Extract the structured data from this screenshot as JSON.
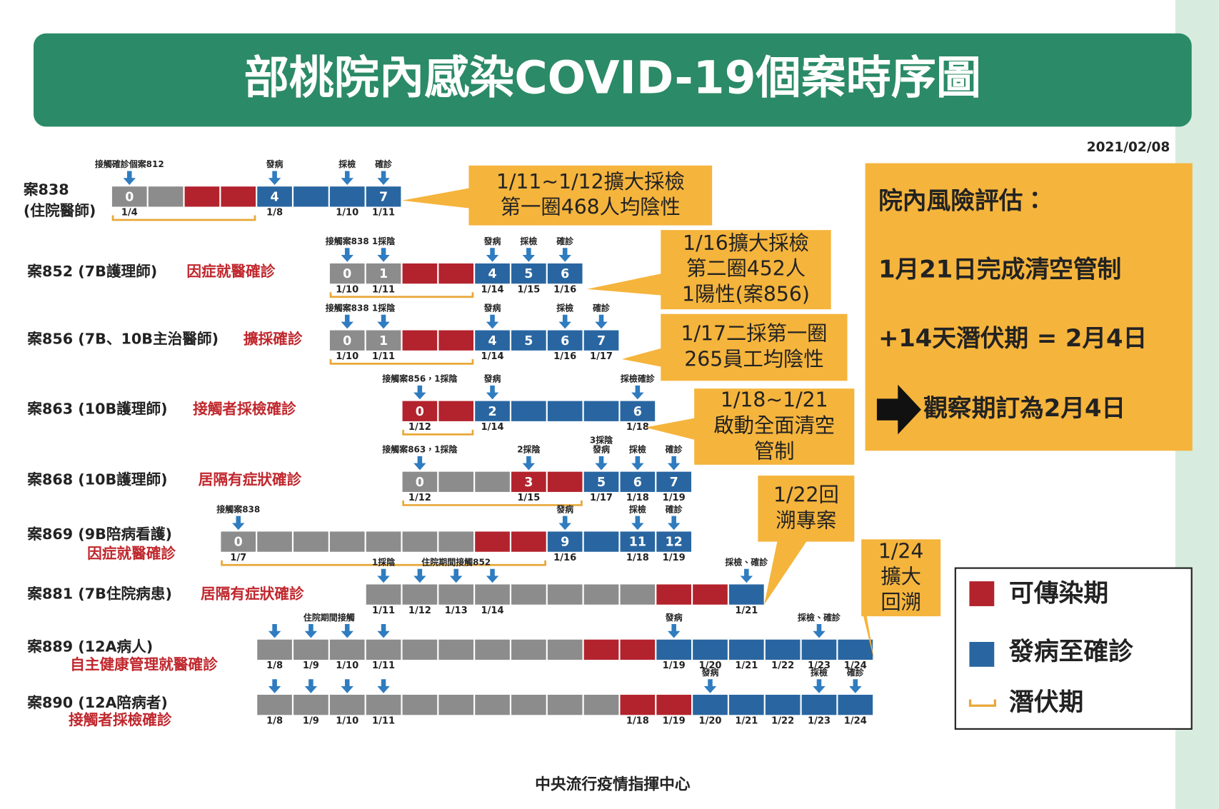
{
  "header": {
    "title": "部桃院內感染COVID-19個案時序圖",
    "date": "2021/02/08"
  },
  "cases": [
    {
      "name": "案838",
      "role": "(住院醫師)",
      "cell_numbers": [
        0,
        4,
        7
      ],
      "events": [
        "接觸確診個案812",
        "發病",
        "採檢",
        "確診"
      ],
      "dates": [
        "1/4",
        "1/8",
        "1/10",
        "1/11"
      ]
    },
    {
      "name": "案852 (7B護理師)",
      "reason": "因症就醫確診",
      "cell_numbers": [
        0,
        1,
        4,
        5,
        6
      ],
      "events": [
        "接觸案838",
        "1採陰",
        "發病",
        "採檢",
        "確診"
      ],
      "dates": [
        "1/10",
        "1/11",
        "1/14",
        "1/15",
        "1/16"
      ]
    },
    {
      "name": "案856 (7B、10B主治醫師)",
      "reason": "擴採確診",
      "cell_numbers": [
        0,
        1,
        4,
        5,
        6,
        7
      ],
      "events": [
        "接觸案838",
        "1採陰",
        "發病",
        "採檢",
        "確診"
      ],
      "dates": [
        "1/10",
        "1/11",
        "1/14",
        "1/16",
        "1/17"
      ]
    },
    {
      "name": "案863 (10B護理師)",
      "reason": "接觸者採檢確診",
      "cell_numbers": [
        0,
        2,
        6
      ],
      "events": [
        "接觸案856，1採陰",
        "發病",
        "採檢確診"
      ],
      "dates": [
        "1/12",
        "1/14",
        "1/18"
      ]
    },
    {
      "name": "案868 (10B護理師)",
      "reason": "居隔有症狀確診",
      "cell_numbers": [
        0,
        3,
        5,
        6,
        7
      ],
      "events": [
        "接觸案863，1採陰",
        "2採陰",
        "3採陰",
        "發病",
        "採檢",
        "確診"
      ],
      "dates": [
        "1/12",
        "1/15",
        "1/17",
        "1/18",
        "1/19"
      ]
    },
    {
      "name": "案869 (9B陪病看護)",
      "reason": "因症就醫確診",
      "cell_numbers": [
        0,
        9,
        11,
        12
      ],
      "events": [
        "接觸案838",
        "發病",
        "採檢",
        "確診"
      ],
      "dates": [
        "1/7",
        "1/16",
        "1/18",
        "1/19"
      ]
    },
    {
      "name": "案881 (7B住院病患)",
      "reason": "居隔有症狀確診",
      "cell_numbers": [],
      "events": [
        "1採陰",
        "住院期間接觸852",
        "採檢、確診"
      ],
      "dates": [
        "1/11",
        "1/12",
        "1/13",
        "1/14",
        "1/21"
      ]
    },
    {
      "name": "案889 (12A病人)",
      "reason": "自主健康管理就醫確診",
      "cell_numbers": [],
      "events": [
        "住院期間接觸",
        "發病",
        "採檢、確診"
      ],
      "dates": [
        "1/8",
        "1/9",
        "1/10",
        "1/11",
        "1/19",
        "1/20",
        "1/21",
        "1/22",
        "1/23",
        "1/24"
      ]
    },
    {
      "name": "案890 (12A陪病者)",
      "reason": "接觸者採檢確診",
      "cell_numbers": [],
      "events": [
        "發病",
        "採檢",
        "確診"
      ],
      "dates": [
        "1/8",
        "1/9",
        "1/10",
        "1/11",
        "1/18",
        "1/19",
        "1/20",
        "1/21",
        "1/22",
        "1/23",
        "1/24"
      ]
    }
  ],
  "callouts": [
    [
      "1/11~1/12擴大採檢",
      "第一圈468人均陰性"
    ],
    [
      "1/16擴大採檢",
      "第二圈452人",
      "1陽性(案856)"
    ],
    [
      "1/17二採第一圈",
      "265員工均陰性"
    ],
    [
      "1/18~1/21",
      "啟動全面清空",
      "管制"
    ],
    [
      "1/22回",
      "溯專案"
    ],
    [
      "1/24",
      "擴大",
      "回溯"
    ]
  ],
  "risk": {
    "title": "院內風險評估：",
    "lines": [
      "1月21日完成清空管制",
      "+14天潛伏期 = 2月4日",
      "觀察期訂為2月4日"
    ]
  },
  "legend": [
    "可傳染期",
    "發病至確診",
    "潛伏期"
  ],
  "footer": "中央流行疫情指揮中心"
}
